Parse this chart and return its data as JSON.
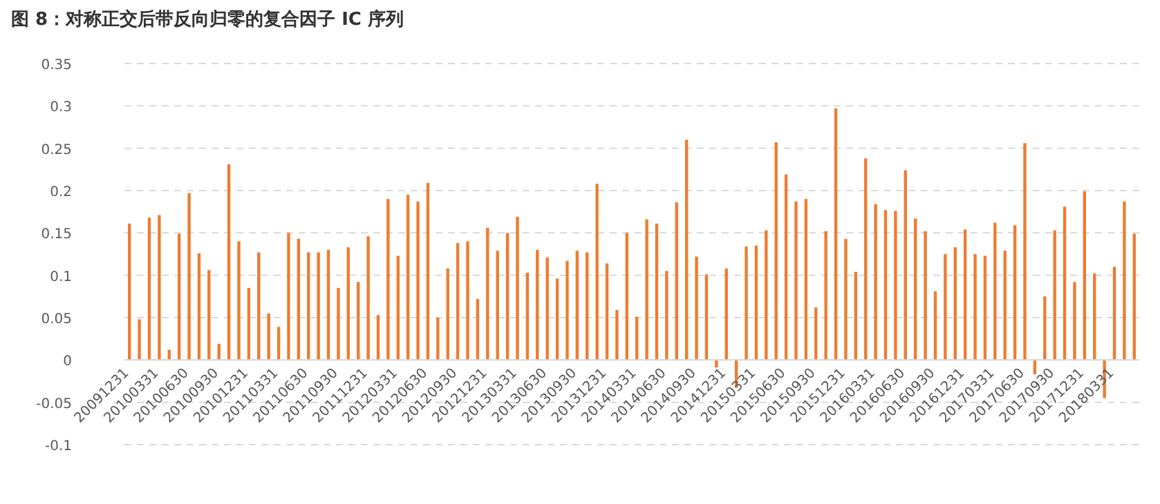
{
  "chart_data": {
    "type": "bar",
    "title": "图 8：对称正交后带反向归零的复合因子 IC 序列",
    "categories": [
      "20091231",
      null,
      null,
      "20100331",
      null,
      null,
      "20100630",
      null,
      null,
      "20100930",
      null,
      null,
      "20101231",
      null,
      null,
      "20110331",
      null,
      null,
      "20110630",
      null,
      null,
      "20110930",
      null,
      null,
      "20111231",
      null,
      null,
      "20120331",
      null,
      null,
      "20120630",
      null,
      null,
      "20120930",
      null,
      null,
      "20121231",
      null,
      null,
      "20130331",
      null,
      null,
      "20130630",
      null,
      null,
      "20130930",
      null,
      null,
      "20131231",
      null,
      null,
      "20140331",
      null,
      null,
      "20140630",
      null,
      null,
      "20140930",
      null,
      null,
      "20141231",
      null,
      null,
      "20150331",
      null,
      null,
      "20150630",
      null,
      null,
      "20150930",
      null,
      null,
      "20151231",
      null,
      null,
      "20160331",
      null,
      null,
      "20160630",
      null,
      null,
      "20160930",
      null,
      null,
      "20161231",
      null,
      null,
      "20170331",
      null,
      null,
      "20170630",
      null,
      null,
      "20170930",
      null,
      null,
      "20171231",
      null,
      null,
      "20180331",
      null,
      null
    ],
    "values": [
      0.161,
      0.048,
      0.168,
      0.171,
      0.012,
      0.149,
      0.197,
      0.126,
      0.106,
      0.019,
      0.231,
      0.14,
      0.085,
      0.127,
      0.055,
      0.039,
      0.15,
      0.143,
      0.127,
      0.127,
      0.13,
      0.085,
      0.133,
      0.092,
      0.146,
      0.053,
      0.19,
      0.123,
      0.195,
      0.187,
      0.209,
      0.05,
      0.108,
      0.138,
      0.14,
      0.072,
      0.156,
      0.129,
      0.15,
      0.169,
      0.103,
      0.13,
      0.121,
      0.096,
      0.117,
      0.129,
      0.127,
      0.208,
      0.114,
      0.059,
      0.15,
      0.051,
      0.166,
      0.161,
      0.105,
      0.186,
      0.26,
      0.122,
      0.101,
      -0.009,
      0.108,
      -0.033,
      0.134,
      0.135,
      0.153,
      0.257,
      0.219,
      0.187,
      0.19,
      0.062,
      0.152,
      0.297,
      0.143,
      0.104,
      0.238,
      0.184,
      0.177,
      0.176,
      0.224,
      0.167,
      0.152,
      0.081,
      0.125,
      0.133,
      0.154,
      0.125,
      0.123,
      0.162,
      0.129,
      0.159,
      0.256,
      -0.017,
      0.075,
      0.153,
      0.181,
      0.092,
      0.199,
      0.102,
      -0.045,
      0.11,
      0.187,
      0.149
    ],
    "color": "#ed7d31",
    "ylim": [
      -0.1,
      0.35
    ],
    "yticks": [
      -0.1,
      -0.05,
      0,
      0.05,
      0.1,
      0.15,
      0.2,
      0.25,
      0.3,
      0.35
    ],
    "grid": "y"
  }
}
